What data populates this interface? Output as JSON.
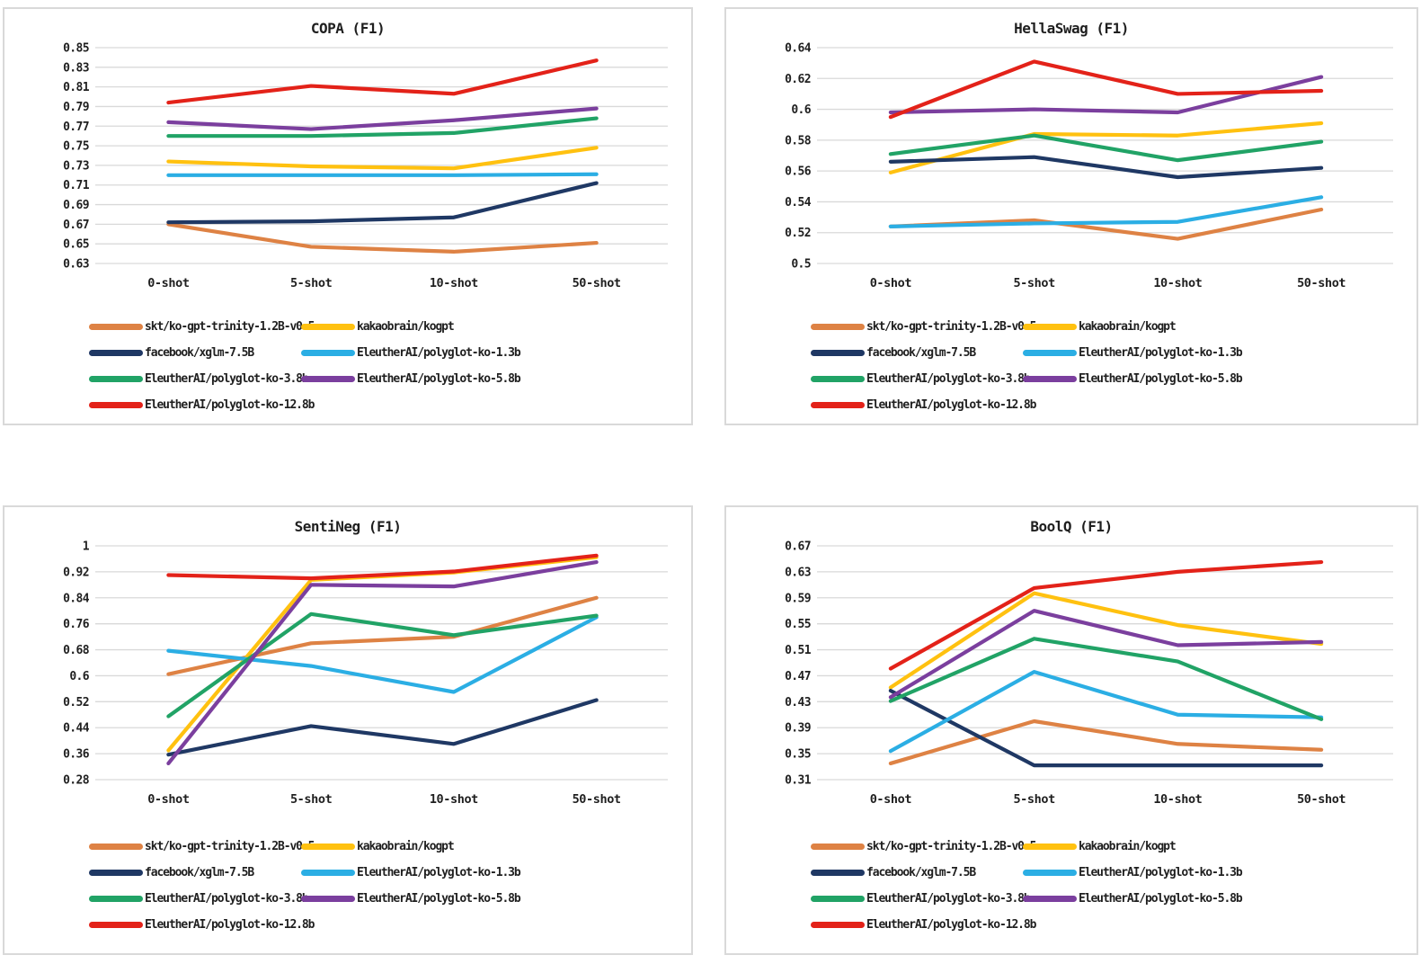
{
  "layout_colors": {
    "background": "#FFFFFF",
    "gridline": "#D9D9D9",
    "panel_border": "#D9D9D9",
    "text": "#1F1F1F"
  },
  "chart_data": [
    {
      "type": "line",
      "title": "COPA (F1)",
      "x": [
        "0-shot",
        "5-shot",
        "10-shot",
        "50-shot"
      ],
      "ylim": [
        0.63,
        0.85
      ],
      "y_tick_labels": [
        "0.85",
        "0.83",
        "0.81",
        "0.79",
        "0.77",
        "0.75",
        "0.73",
        "0.71",
        "0.69",
        "0.67",
        "0.65",
        "0.63"
      ],
      "grid": true,
      "legend_position": "bottom",
      "series": [
        {
          "name": "skt/ko-gpt-trinity-1.2B-v0.5",
          "color": "#DE8244",
          "values": [
            0.67,
            0.647,
            0.642,
            0.651
          ]
        },
        {
          "name": "kakaobrain/kogpt",
          "color": "#FFC110",
          "values": [
            0.734,
            0.729,
            0.727,
            0.748
          ]
        },
        {
          "name": "facebook/xglm-7.5B",
          "color": "#1F3864",
          "values": [
            0.672,
            0.673,
            0.677,
            0.712
          ]
        },
        {
          "name": "EleutherAI/polyglot-ko-1.3b",
          "color": "#2BAEE4",
          "values": [
            0.72,
            0.72,
            0.72,
            0.721
          ]
        },
        {
          "name": "EleutherAI/polyglot-ko-3.8b",
          "color": "#21A366",
          "values": [
            0.76,
            0.76,
            0.763,
            0.778
          ]
        },
        {
          "name": "EleutherAI/polyglot-ko-5.8b",
          "color": "#7B3F9E",
          "values": [
            0.774,
            0.767,
            0.776,
            0.788
          ]
        },
        {
          "name": "EleutherAI/polyglot-ko-12.8b",
          "color": "#E32219",
          "values": [
            0.794,
            0.811,
            0.803,
            0.837
          ]
        }
      ]
    },
    {
      "type": "line",
      "title": "HellaSwag (F1)",
      "x": [
        "0-shot",
        "5-shot",
        "10-shot",
        "50-shot"
      ],
      "ylim": [
        0.5,
        0.64
      ],
      "y_tick_labels": [
        "0.64",
        "0.62",
        "0.6",
        "0.58",
        "0.56",
        "0.54",
        "0.52",
        "0.5"
      ],
      "grid": true,
      "legend_position": "bottom",
      "series": [
        {
          "name": "skt/ko-gpt-trinity-1.2B-v0.5",
          "color": "#DE8244",
          "values": [
            0.524,
            0.528,
            0.516,
            0.535
          ]
        },
        {
          "name": "kakaobrain/kogpt",
          "color": "#FFC110",
          "values": [
            0.559,
            0.584,
            0.583,
            0.591
          ]
        },
        {
          "name": "facebook/xglm-7.5B",
          "color": "#1F3864",
          "values": [
            0.566,
            0.569,
            0.556,
            0.562
          ]
        },
        {
          "name": "EleutherAI/polyglot-ko-1.3b",
          "color": "#2BAEE4",
          "values": [
            0.524,
            0.526,
            0.527,
            0.543
          ]
        },
        {
          "name": "EleutherAI/polyglot-ko-3.8b",
          "color": "#21A366",
          "values": [
            0.571,
            0.583,
            0.567,
            0.579
          ]
        },
        {
          "name": "EleutherAI/polyglot-ko-5.8b",
          "color": "#7B3F9E",
          "values": [
            0.598,
            0.6,
            0.598,
            0.621
          ]
        },
        {
          "name": "EleutherAI/polyglot-ko-12.8b",
          "color": "#E32219",
          "values": [
            0.595,
            0.631,
            0.61,
            0.612
          ]
        }
      ]
    },
    {
      "type": "line",
      "title": "SentiNeg (F1)",
      "x": [
        "0-shot",
        "5-shot",
        "10-shot",
        "50-shot"
      ],
      "ylim": [
        0.28,
        1.0
      ],
      "y_tick_labels": [
        "1",
        "0.92",
        "0.84",
        "0.76",
        "0.68",
        "0.6",
        "0.52",
        "0.44",
        "0.36",
        "0.28"
      ],
      "grid": true,
      "legend_position": "bottom",
      "series": [
        {
          "name": "skt/ko-gpt-trinity-1.2B-v0.5",
          "color": "#DE8244",
          "values": [
            0.605,
            0.7,
            0.72,
            0.84
          ]
        },
        {
          "name": "kakaobrain/kogpt",
          "color": "#FFC110",
          "values": [
            0.37,
            0.895,
            0.918,
            0.965
          ]
        },
        {
          "name": "facebook/xglm-7.5B",
          "color": "#1F3864",
          "values": [
            0.357,
            0.445,
            0.39,
            0.525
          ]
        },
        {
          "name": "EleutherAI/polyglot-ko-1.3b",
          "color": "#2BAEE4",
          "values": [
            0.677,
            0.63,
            0.55,
            0.78
          ]
        },
        {
          "name": "EleutherAI/polyglot-ko-3.8b",
          "color": "#21A366",
          "values": [
            0.475,
            0.79,
            0.725,
            0.785
          ]
        },
        {
          "name": "EleutherAI/polyglot-ko-5.8b",
          "color": "#7B3F9E",
          "values": [
            0.33,
            0.88,
            0.875,
            0.95
          ]
        },
        {
          "name": "EleutherAI/polyglot-ko-12.8b",
          "color": "#E32219",
          "values": [
            0.91,
            0.9,
            0.921,
            0.97
          ]
        }
      ]
    },
    {
      "type": "line",
      "title": "BoolQ (F1)",
      "x": [
        "0-shot",
        "5-shot",
        "10-shot",
        "50-shot"
      ],
      "ylim": [
        0.31,
        0.67
      ],
      "y_tick_labels": [
        "0.67",
        "0.63",
        "0.59",
        "0.55",
        "0.51",
        "0.47",
        "0.43",
        "0.39",
        "0.35",
        "0.31"
      ],
      "grid": true,
      "legend_position": "bottom",
      "series": [
        {
          "name": "skt/ko-gpt-trinity-1.2B-v0.5",
          "color": "#DE8244",
          "values": [
            0.335,
            0.4,
            0.365,
            0.356
          ]
        },
        {
          "name": "kakaobrain/kogpt",
          "color": "#FFC110",
          "values": [
            0.452,
            0.597,
            0.548,
            0.519
          ]
        },
        {
          "name": "facebook/xglm-7.5B",
          "color": "#1F3864",
          "values": [
            0.447,
            0.332,
            0.332,
            0.332
          ]
        },
        {
          "name": "EleutherAI/polyglot-ko-1.3b",
          "color": "#2BAEE4",
          "values": [
            0.354,
            0.476,
            0.41,
            0.406
          ]
        },
        {
          "name": "EleutherAI/polyglot-ko-3.8b",
          "color": "#21A366",
          "values": [
            0.431,
            0.527,
            0.492,
            0.403
          ]
        },
        {
          "name": "EleutherAI/polyglot-ko-5.8b",
          "color": "#7B3F9E",
          "values": [
            0.437,
            0.57,
            0.517,
            0.522
          ]
        },
        {
          "name": "EleutherAI/polyglot-ko-12.8b",
          "color": "#E32219",
          "values": [
            0.481,
            0.605,
            0.63,
            0.645
          ]
        }
      ]
    }
  ]
}
